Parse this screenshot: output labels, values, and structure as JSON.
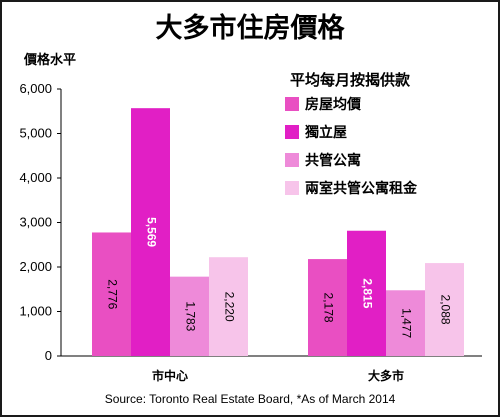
{
  "chart_data": {
    "type": "bar",
    "title": "大多市住房價格",
    "ylabel": "價格水平",
    "xlabel": "",
    "ylim": [
      0,
      6000
    ],
    "yticks": [
      "0",
      "1,000",
      "2,000",
      "3,000",
      "4,000",
      "5,000",
      "6,000"
    ],
    "ytick_values": [
      0,
      1000,
      2000,
      3000,
      4000,
      5000,
      6000
    ],
    "legend_title": "平均每月按揭供款",
    "legend_position": "top-right",
    "grid": false,
    "categories": [
      "市中心",
      "大多市"
    ],
    "series": [
      {
        "name": "房屋均價",
        "color": "#e94fc2",
        "values": [
          2776,
          2178
        ],
        "labels": [
          "2,776",
          "2,178"
        ]
      },
      {
        "name": "獨立屋",
        "color": "#e11fc5",
        "values": [
          5569,
          2815
        ],
        "labels": [
          "5,569",
          "2,815"
        ]
      },
      {
        "name": "共管公寓",
        "color": "#ee8ad9",
        "values": [
          1783,
          1477
        ],
        "labels": [
          "1,783",
          "1,477"
        ]
      },
      {
        "name": "兩室共管公寓租金",
        "color": "#f7c4ea",
        "values": [
          2220,
          2088
        ],
        "labels": [
          "2,220",
          "2,088"
        ]
      }
    ]
  },
  "footer": {
    "source": "Source: Toronto Real Estate Board, *As of March 2014"
  }
}
